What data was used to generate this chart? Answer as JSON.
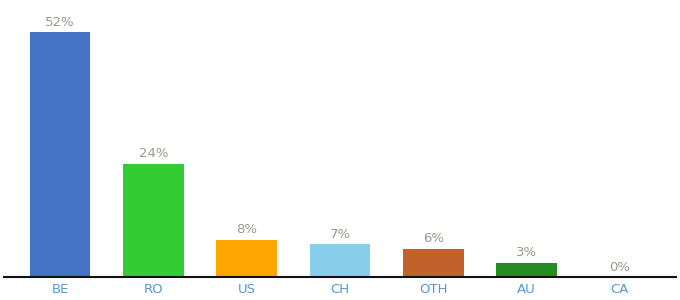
{
  "categories": [
    "BE",
    "RO",
    "US",
    "CH",
    "OTH",
    "AU",
    "CA"
  ],
  "values": [
    52,
    24,
    8,
    7,
    6,
    3,
    0.3
  ],
  "labels": [
    "52%",
    "24%",
    "8%",
    "7%",
    "6%",
    "3%",
    "0%"
  ],
  "bar_colors": [
    "#4472C4",
    "#33CC33",
    "#FFA500",
    "#87CEEB",
    "#C0622A",
    "#228B22",
    "#FFFFFF"
  ],
  "background_color": "#FFFFFF",
  "text_color": "#999988",
  "xlabel_color": "#5599CC",
  "ylim": [
    0,
    58
  ],
  "bar_width": 0.65,
  "label_fontsize": 9.5,
  "tick_fontsize": 9.5
}
